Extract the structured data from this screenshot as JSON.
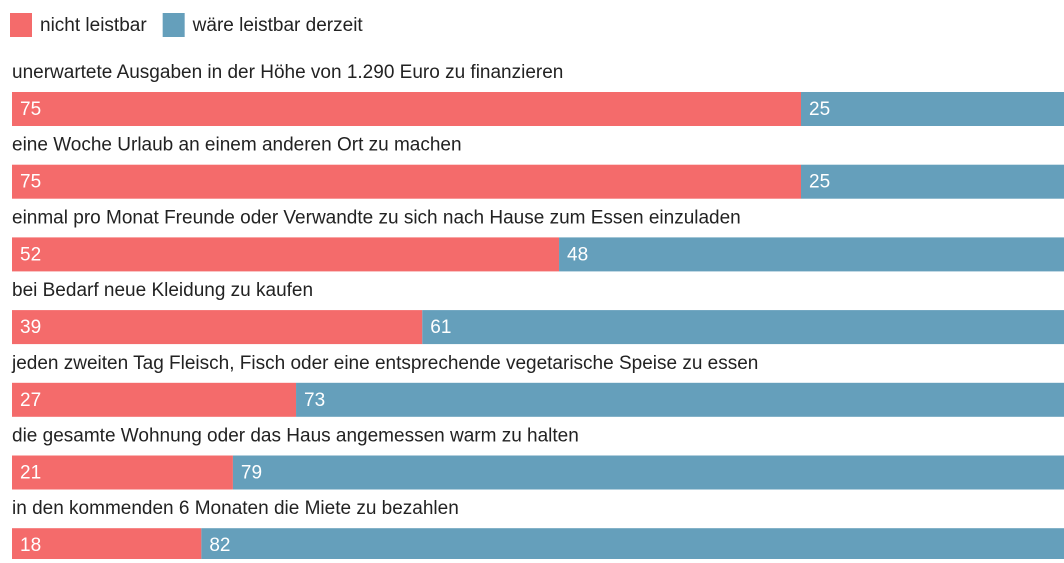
{
  "chart_data": {
    "type": "bar",
    "orientation": "horizontal",
    "stacked": true,
    "categories": [
      "unerwartete Ausgaben in der Höhe von 1.290 Euro zu finanzieren",
      "eine Woche Urlaub an einem anderen Ort zu machen",
      "einmal pro Monat Freunde oder Verwandte zu sich nach Hause zum Essen einzuladen",
      "bei Bedarf neue Kleidung zu kaufen",
      "jeden zweiten Tag Fleisch, Fisch oder eine entsprechende vegetarische Speise zu essen",
      "die gesamte Wohnung oder das Haus angemessen warm zu halten",
      "in den kommenden 6 Monaten die Miete zu bezahlen"
    ],
    "series": [
      {
        "name": "nicht leistbar",
        "color": "#f46b6b",
        "values": [
          75,
          75,
          52,
          39,
          27,
          21,
          18
        ]
      },
      {
        "name": "wäre leistbar derzeit",
        "color": "#659fbb",
        "values": [
          25,
          25,
          48,
          61,
          73,
          79,
          82
        ]
      }
    ],
    "xlim": [
      0,
      100
    ],
    "legend": "top-left"
  }
}
